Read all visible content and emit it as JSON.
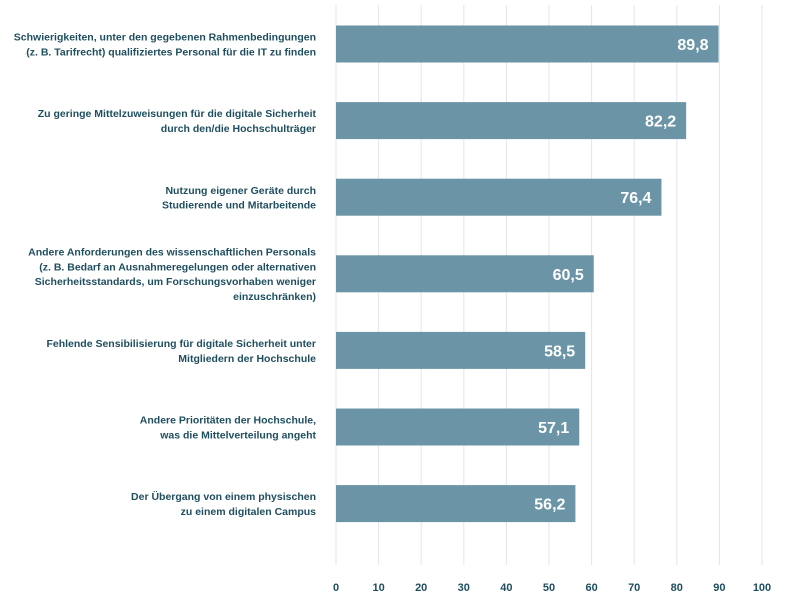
{
  "chart_data": {
    "type": "bar",
    "orientation": "horizontal",
    "categories": [
      [
        "Schwierigkeiten, unter den gegebenen Rahmenbedingungen",
        "(z. B. Tarifrecht) qualifiziertes Personal für die IT zu finden"
      ],
      [
        "Zu geringe Mittelzuweisungen für die digitale Sicherheit",
        "durch den/die Hochschulträger"
      ],
      [
        "Nutzung eigener Geräte durch",
        "Studierende und Mitarbeitende"
      ],
      [
        "Andere Anforderungen des wissenschaftlichen Personals",
        "(z. B. Bedarf an Ausnahmeregelungen oder alternativen",
        "Sicherheitsstandards, um Forschungsvorhaben weniger",
        "einzuschränken)"
      ],
      [
        "Fehlende Sensibilisierung für digitale Sicherheit unter",
        "Mitgliedern der Hochschule"
      ],
      [
        "Andere Prioritäten der Hochschule,",
        "was die Mittelverteilung angeht"
      ],
      [
        "Der Übergang von einem physischen",
        "zu einem digitalen Campus"
      ]
    ],
    "values": [
      89.8,
      82.2,
      76.4,
      60.5,
      58.5,
      57.1,
      56.2
    ],
    "value_labels": [
      "89,8",
      "82,2",
      "76,4",
      "60,5",
      "58,5",
      "57,1",
      "56,2"
    ],
    "xlim": [
      0,
      100
    ],
    "xticks": [
      0,
      10,
      20,
      30,
      40,
      50,
      60,
      70,
      80,
      90,
      100
    ],
    "title": "",
    "xlabel": "",
    "ylabel": "",
    "grid": "vertical",
    "legend": "none",
    "colors": {
      "bar": "#6b95a6",
      "text": "#1f4e5f",
      "value_text": "#ffffff",
      "grid": "#e2e6e8"
    }
  }
}
